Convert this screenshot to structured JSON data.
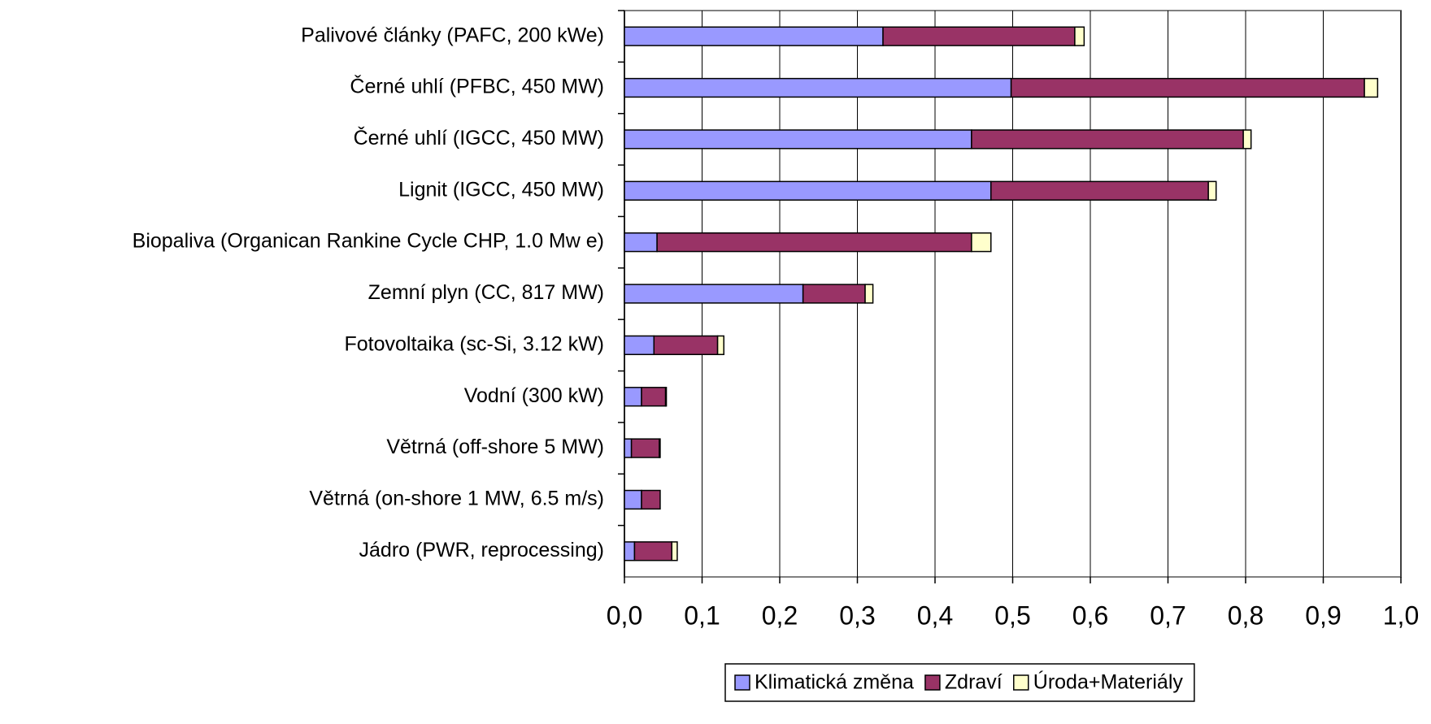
{
  "chart_data": {
    "type": "stacked-bar-horizontal",
    "categories": [
      "Palivové články (PAFC, 200 kWe)",
      "Černé uhlí (PFBC, 450 MW)",
      "Černé uhlí (IGCC, 450 MW)",
      "Lignit (IGCC, 450 MW)",
      "Biopaliva (Organican Rankine Cycle CHP, 1.0 Mw e)",
      "Zemní plyn (CC, 817 MW)",
      "Fotovoltaika (sc-Si, 3.12 kW)",
      "Vodní (300 kW)",
      "Větrná (off-shore 5 MW)",
      "Větrná (on-shore 1 MW, 6.5 m/s)",
      "Jádro (PWR, reprocessing)"
    ],
    "series": [
      {
        "name": "Klimatická změna",
        "color": "#9999ff",
        "values": [
          0.333,
          0.498,
          0.447,
          0.472,
          0.042,
          0.23,
          0.038,
          0.022,
          0.009,
          0.022,
          0.013
        ]
      },
      {
        "name": "Zdraví",
        "color": "#993366",
        "values": [
          0.247,
          0.455,
          0.35,
          0.28,
          0.405,
          0.08,
          0.082,
          0.031,
          0.036,
          0.024,
          0.048
        ]
      },
      {
        "name": "Úroda+Materiály",
        "color": "#ffffcc",
        "values": [
          0.012,
          0.017,
          0.01,
          0.01,
          0.025,
          0.01,
          0.008,
          0.001,
          0.001,
          0,
          0.007
        ]
      }
    ],
    "xlim": [
      0,
      1
    ],
    "xticks": [
      {
        "value": 0,
        "label": "0,0"
      },
      {
        "value": 0.1,
        "label": "0,1"
      },
      {
        "value": 0.2,
        "label": "0,2"
      },
      {
        "value": 0.3,
        "label": "0,3"
      },
      {
        "value": 0.4,
        "label": "0,4"
      },
      {
        "value": 0.5,
        "label": "0,5"
      },
      {
        "value": 0.6,
        "label": "0,6"
      },
      {
        "value": 0.7,
        "label": "0,7"
      },
      {
        "value": 0.8,
        "label": "0,8"
      },
      {
        "value": 0.9,
        "label": "0,9"
      },
      {
        "value": 1,
        "label": "1,0"
      }
    ],
    "grid": true,
    "legend": "bottom"
  }
}
